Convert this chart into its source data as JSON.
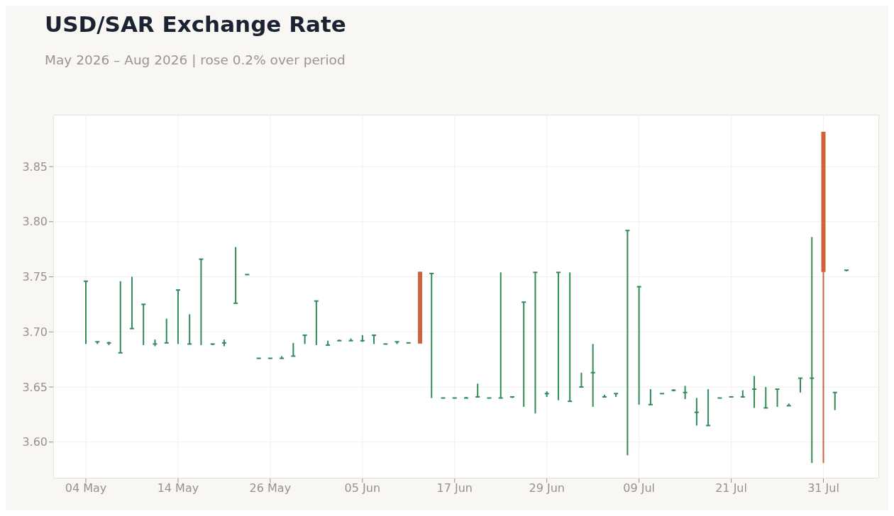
{
  "chart_data": {
    "type": "candlestick",
    "title": "USD/SAR Exchange Rate",
    "subtitle": "May 2026 – Aug 2026 | rose 0.2% over period",
    "categories": [
      "04 May",
      null,
      null,
      null,
      null,
      null,
      null,
      null,
      "14 May",
      null,
      null,
      null,
      null,
      null,
      null,
      null,
      "26 May",
      null,
      null,
      null,
      null,
      null,
      null,
      null,
      "05 Jun",
      null,
      null,
      null,
      null,
      null,
      null,
      null,
      "17 Jun",
      null,
      null,
      null,
      null,
      null,
      null,
      null,
      "29 Jun",
      null,
      null,
      null,
      null,
      null,
      null,
      null,
      "09 Jul",
      null,
      null,
      null,
      null,
      null,
      null,
      null,
      "21 Jul",
      null,
      null,
      null,
      null,
      null,
      null,
      null,
      "31 Jul",
      null,
      null
    ],
    "ohlc": [
      [
        3.746,
        3.746,
        3.689,
        3.746
      ],
      [
        3.691,
        3.691,
        3.689,
        3.691
      ],
      [
        3.69,
        3.691,
        3.688,
        3.69
      ],
      [
        3.681,
        3.746,
        3.681,
        3.681
      ],
      [
        3.703,
        3.75,
        3.703,
        3.703
      ],
      [
        3.725,
        3.725,
        3.688,
        3.725
      ],
      [
        3.689,
        3.693,
        3.687,
        3.689
      ],
      [
        3.69,
        3.712,
        3.69,
        3.69
      ],
      [
        3.738,
        3.738,
        3.689,
        3.738
      ],
      [
        3.689,
        3.716,
        3.689,
        3.689
      ],
      [
        3.766,
        3.766,
        3.688,
        3.766
      ],
      [
        3.689,
        3.689,
        3.688,
        3.689
      ],
      [
        3.69,
        3.693,
        3.687,
        3.69
      ],
      [
        3.726,
        3.777,
        3.726,
        3.726
      ],
      [
        3.752,
        3.752,
        3.752,
        3.752
      ],
      [
        3.676,
        3.676,
        3.676,
        3.676
      ],
      [
        3.676,
        3.676,
        3.676,
        3.676
      ],
      [
        3.676,
        3.678,
        3.676,
        3.676
      ],
      [
        3.678,
        3.69,
        3.678,
        3.678
      ],
      [
        3.697,
        3.697,
        3.689,
        3.697
      ],
      [
        3.728,
        3.728,
        3.688,
        3.728
      ],
      [
        3.688,
        3.692,
        3.688,
        3.688
      ],
      [
        3.692,
        3.693,
        3.692,
        3.692
      ],
      [
        3.692,
        3.694,
        3.692,
        3.692
      ],
      [
        3.692,
        3.697,
        3.691,
        3.692
      ],
      [
        3.697,
        3.697,
        3.689,
        3.697
      ],
      [
        3.689,
        3.689,
        3.689,
        3.689
      ],
      [
        3.691,
        3.691,
        3.689,
        3.691
      ],
      [
        3.69,
        3.69,
        3.69,
        3.69
      ],
      [
        3.754,
        3.754,
        3.69,
        3.69
      ],
      [
        3.753,
        3.753,
        3.64,
        3.753
      ],
      [
        3.64,
        3.64,
        3.64,
        3.64
      ],
      [
        3.64,
        3.64,
        3.64,
        3.64
      ],
      [
        3.64,
        3.641,
        3.64,
        3.64
      ],
      [
        3.641,
        3.653,
        3.641,
        3.641
      ],
      [
        3.64,
        3.64,
        3.64,
        3.64
      ],
      [
        3.64,
        3.754,
        3.64,
        3.64
      ],
      [
        3.641,
        3.641,
        3.64,
        3.641
      ],
      [
        3.727,
        3.727,
        3.632,
        3.727
      ],
      [
        3.754,
        3.754,
        3.626,
        3.754
      ],
      [
        3.644,
        3.646,
        3.641,
        3.644
      ],
      [
        3.754,
        3.754,
        3.638,
        3.754
      ],
      [
        3.637,
        3.754,
        3.637,
        3.637
      ],
      [
        3.65,
        3.663,
        3.65,
        3.65
      ],
      [
        3.663,
        3.689,
        3.632,
        3.663
      ],
      [
        3.641,
        3.643,
        3.641,
        3.641
      ],
      [
        3.644,
        3.644,
        3.641,
        3.644
      ],
      [
        3.792,
        3.792,
        3.588,
        3.792
      ],
      [
        3.741,
        3.741,
        3.634,
        3.741
      ],
      [
        3.634,
        3.648,
        3.634,
        3.634
      ],
      [
        3.644,
        3.644,
        3.644,
        3.644
      ],
      [
        3.647,
        3.648,
        3.646,
        3.647
      ],
      [
        3.645,
        3.651,
        3.639,
        3.645
      ],
      [
        3.627,
        3.64,
        3.615,
        3.627
      ],
      [
        3.615,
        3.648,
        3.615,
        3.615
      ],
      [
        3.64,
        3.64,
        3.64,
        3.64
      ],
      [
        3.641,
        3.641,
        3.641,
        3.641
      ],
      [
        3.641,
        3.647,
        3.641,
        3.641
      ],
      [
        3.648,
        3.66,
        3.631,
        3.648
      ],
      [
        3.631,
        3.65,
        3.631,
        3.631
      ],
      [
        3.648,
        3.648,
        3.632,
        3.648
      ],
      [
        3.633,
        3.635,
        3.633,
        3.633
      ],
      [
        3.658,
        3.658,
        3.645,
        3.658
      ],
      [
        3.658,
        3.786,
        3.581,
        3.658
      ],
      [
        3.881,
        3.881,
        3.581,
        3.755
      ],
      [
        3.645,
        3.645,
        3.629,
        3.645
      ],
      [
        3.756,
        3.756,
        3.755,
        3.756
      ]
    ],
    "colors": [
      "#2e8b57",
      "#2e8b57",
      "#2e8b57",
      "#2e8b57",
      "#2e8b57",
      "#2e8b57",
      "#2e8b57",
      "#2e8b57",
      "#2e8b57",
      "#2e8b57",
      "#2e8b57",
      "#2e8b57",
      "#2e8b57",
      "#2e8b57",
      "#2e8b57",
      "#2e8b57",
      "#2e8b57",
      "#2e8b57",
      "#2e8b57",
      "#2e8b57",
      "#2e8b57",
      "#2e8b57",
      "#2e8b57",
      "#2e8b57",
      "#2e8b57",
      "#2e8b57",
      "#2e8b57",
      "#2e8b57",
      "#2e8b57",
      "#d1603d",
      "#2e8b57",
      "#2e8b57",
      "#2e8b57",
      "#2e8b57",
      "#2e8b57",
      "#2e8b57",
      "#2e8b57",
      "#2e8b57",
      "#2e8b57",
      "#2e8b57",
      "#2e8b57",
      "#2e8b57",
      "#2e8b57",
      "#2e8b57",
      "#2e8b57",
      "#2e8b57",
      "#2e8b57",
      "#2e8b57",
      "#2e8b57",
      "#2e8b57",
      "#2e8b57",
      "#2e8b57",
      "#2e8b57",
      "#2e8b57",
      "#2e8b57",
      "#2e8b57",
      "#2e8b57",
      "#2e8b57",
      "#2e8b57",
      "#2e8b57",
      "#2e8b57",
      "#2e8b57",
      "#2e8b57",
      "#2e8b57",
      "#d1603d",
      "#2e8b57",
      "#2e8b57"
    ],
    "ylim": [
      3.567,
      3.897
    ],
    "yticks": [
      {
        "value": 3.6,
        "label": "3.60"
      },
      3.65,
      {
        "value": 3.7,
        "label": "3.70"
      },
      3.75,
      {
        "value": 3.8,
        "label": "3.80"
      },
      3.85
    ],
    "grid": true
  }
}
